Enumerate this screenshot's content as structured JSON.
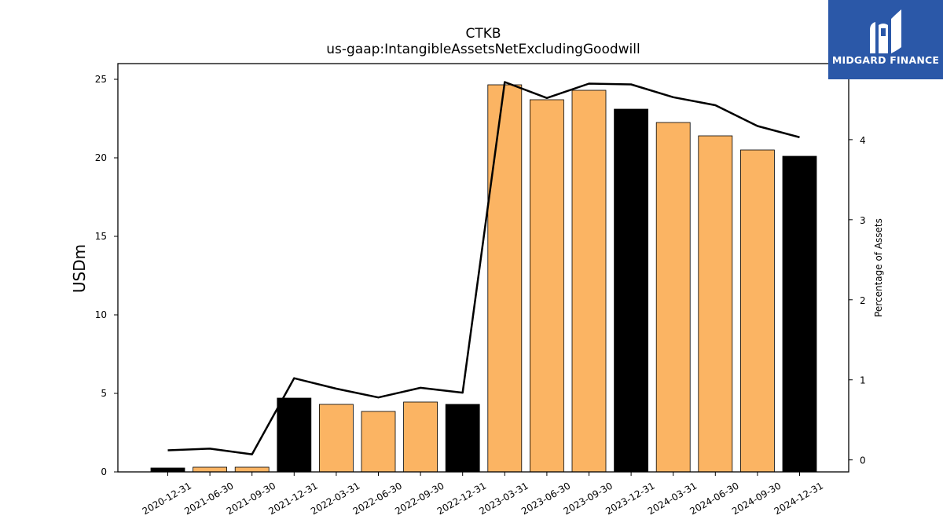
{
  "logo": {
    "text": "MIDGARD FINANCE",
    "colors": {
      "background": "#2b58a8",
      "foreground": "#ffffff"
    }
  },
  "chart_data": {
    "type": "bar",
    "title": "CTKB",
    "subtitle": "us-gaap:IntangibleAssetsNetExcludingGoodwill",
    "ylabel": "USDm",
    "y2label": "Percentage of Assets",
    "categories": [
      "2020-12-31",
      "2021-06-30",
      "2021-09-30",
      "2021-12-31",
      "2022-03-31",
      "2022-06-30",
      "2022-09-30",
      "2022-12-31",
      "2023-03-31",
      "2023-06-30",
      "2023-09-30",
      "2023-12-31",
      "2024-03-31",
      "2024-06-30",
      "2024-09-30",
      "2024-12-31"
    ],
    "series": [
      {
        "kind": "bar",
        "axis": "left",
        "values": [
          0.25,
          0.3,
          0.3,
          4.7,
          4.3,
          3.85,
          4.45,
          4.3,
          24.65,
          23.7,
          24.3,
          23.1,
          22.25,
          21.4,
          20.5,
          20.1
        ],
        "highlight": [
          true,
          false,
          false,
          true,
          false,
          false,
          false,
          true,
          false,
          false,
          false,
          true,
          false,
          false,
          false,
          true
        ]
      },
      {
        "kind": "line",
        "axis": "right",
        "values": [
          0.12,
          0.14,
          0.07,
          1.02,
          0.89,
          0.78,
          0.9,
          0.84,
          4.72,
          4.52,
          4.7,
          4.69,
          4.53,
          4.43,
          4.17,
          4.03
        ]
      }
    ],
    "ylim": [
      0,
      26
    ],
    "y2lim": [
      -0.15,
      4.95
    ],
    "yticks": [
      0,
      5,
      10,
      15,
      20,
      25
    ],
    "y2ticks": [
      0,
      1,
      2,
      3,
      4
    ],
    "colors": {
      "bar": "#fbb463",
      "bar_highlight": "#000000",
      "line": "#000000"
    },
    "grid": false,
    "legend": "none"
  }
}
